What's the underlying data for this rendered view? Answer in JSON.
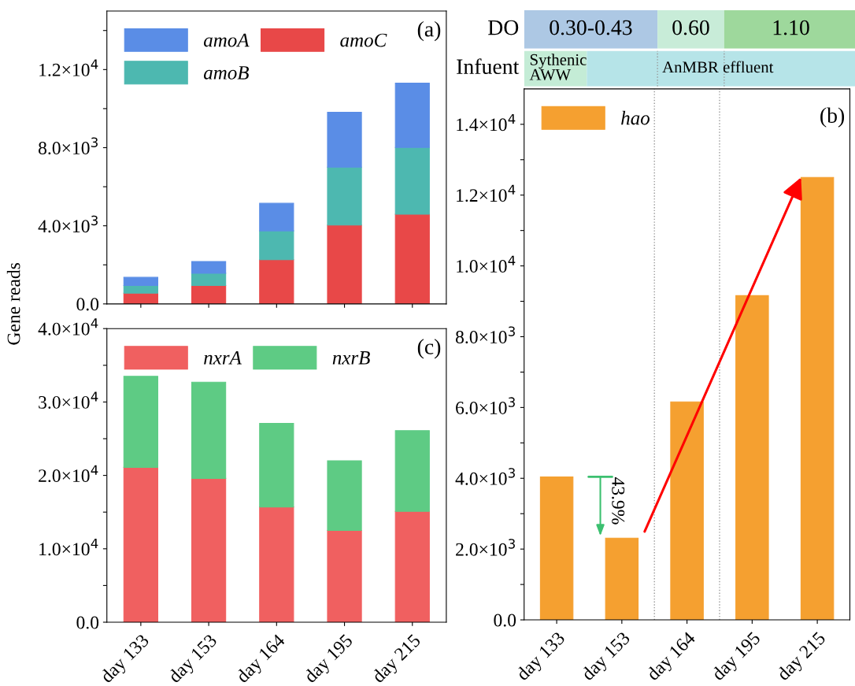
{
  "chart_data": [
    {
      "type": "bar",
      "stacked": true,
      "categories": [
        null,
        null,
        null,
        null,
        null
      ],
      "series": [
        {
          "name": "amoC",
          "color": "#e84848",
          "values": [
            550,
            940,
            2260,
            4040,
            4590
          ]
        },
        {
          "name": "amoB",
          "color": "#4db8b0",
          "values": [
            390,
            630,
            1480,
            2960,
            3420
          ]
        },
        {
          "name": "amoA",
          "color": "#5a8de6",
          "values": [
            420,
            600,
            1410,
            2810,
            3290
          ]
        }
      ],
      "ylim": [
        0,
        15000
      ],
      "yticks": [
        {
          "value": 0,
          "label": "0.0"
        },
        {
          "value": 2000,
          "label": null
        },
        {
          "value": 4000,
          "label": "4.0×10$^{3}$"
        },
        {
          "value": 6000,
          "label": null
        },
        {
          "value": 8000,
          "label": "8.0×10$^{3}$"
        },
        {
          "value": 10000,
          "label": null
        },
        {
          "value": 12000,
          "label": "1.2×10$^{4}$"
        },
        {
          "value": 14000,
          "label": null
        }
      ],
      "tick_labels": "y",
      "legend": "top left",
      "annotations": [
        "(a)"
      ]
    },
    {
      "type": "other",
      "title": "DO",
      "annotations": [
        "0.30-0.43",
        "0.60",
        "1.10"
      ]
    },
    {
      "type": "other",
      "title": "Infuent",
      "annotations": [
        "Sythenic\nAWW",
        "AnMBR effluent"
      ]
    },
    {
      "type": "bar",
      "categories": [
        "day 133",
        "day 153",
        "day 164",
        "day 195",
        "day 215"
      ],
      "series": [
        {
          "name": "hao",
          "color": "#f5a030",
          "values": [
            4040,
            2310,
            6160,
            9160,
            12500
          ]
        }
      ],
      "ylim": [
        0,
        15000
      ],
      "yticks": [
        {
          "value": 0,
          "label": "0.0"
        },
        {
          "value": 1000,
          "label": null
        },
        {
          "value": 2000,
          "label": "2.0×10$^{3}$"
        },
        {
          "value": 3000,
          "label": null
        },
        {
          "value": 4000,
          "label": "4.0×10$^{3}$"
        },
        {
          "value": 5000,
          "label": null
        },
        {
          "value": 6000,
          "label": "6.0×10$^{3}$"
        },
        {
          "value": 7000,
          "label": null
        },
        {
          "value": 8000,
          "label": "8.0×10$^{3}$"
        },
        {
          "value": 9000,
          "label": null
        },
        {
          "value": 10000,
          "label": "1.0×10$^{4}$"
        },
        {
          "value": 11000,
          "label": null
        },
        {
          "value": 12000,
          "label": "1.2×10$^{4}$"
        },
        {
          "value": 13000,
          "label": null
        },
        {
          "value": 14000,
          "label": "1.4×10$^{4}$"
        }
      ],
      "legend": "top left",
      "annotations": [
        "(b)",
        "43.9%"
      ]
    },
    {
      "type": "bar",
      "stacked": true,
      "categories": [
        "day 133",
        "day 153",
        "day 164",
        "day 195",
        "day 215"
      ],
      "series": [
        {
          "name": "nxrA",
          "color": "#f06060",
          "values": [
            21100,
            19600,
            15700,
            12500,
            15100
          ]
        },
        {
          "name": "nxrB",
          "color": "#5ecb84",
          "values": [
            12400,
            13100,
            11400,
            9500,
            11000
          ]
        }
      ],
      "ylabel": "Gene reads",
      "ylim": [
        0,
        40000
      ],
      "yticks": [
        {
          "value": 0,
          "label": "0.0"
        },
        {
          "value": 5000,
          "label": null
        },
        {
          "value": 10000,
          "label": "1.0×10$^{4}$"
        },
        {
          "value": 15000,
          "label": null
        },
        {
          "value": 20000,
          "label": "2.0×10$^{4}$"
        },
        {
          "value": 25000,
          "label": null
        },
        {
          "value": 30000,
          "label": "3.0×10$^{4}$"
        },
        {
          "value": 35000,
          "label": null
        },
        {
          "value": 40000,
          "label": "4.0×10$^{4}$"
        }
      ],
      "legend": "top left",
      "annotations": [
        "(c)"
      ]
    }
  ]
}
